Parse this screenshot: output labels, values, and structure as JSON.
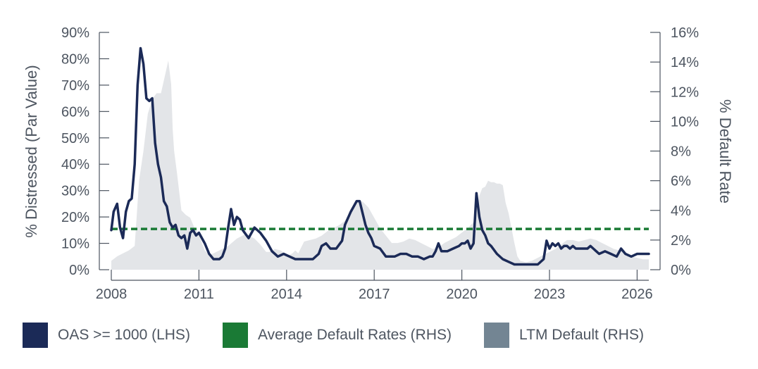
{
  "chart_data": {
    "type": "line",
    "title": "",
    "xlabel": "",
    "ylabel_left": "% Distressed (Par Value)",
    "ylabel_right": "% Default Rate",
    "x_ticks": [
      "2008",
      "2011",
      "2014",
      "2017",
      "2020",
      "2023",
      "2026"
    ],
    "x_range": [
      2008.0,
      2026.4
    ],
    "ylim_left": [
      0,
      90
    ],
    "ylim_right": [
      0,
      16
    ],
    "y_ticks_left": [
      "0%",
      "10%",
      "20%",
      "30%",
      "40%",
      "50%",
      "60%",
      "70%",
      "80%",
      "90%"
    ],
    "y_ticks_right": [
      "0%",
      "2%",
      "4%",
      "6%",
      "8%",
      "10%",
      "12%",
      "14%",
      "16%"
    ],
    "series": [
      {
        "name": "OAS >= 1000 (LHS)",
        "type": "line",
        "axis": "left",
        "color": "#1b2a57",
        "x": [
          2008.0,
          2008.08,
          2008.2,
          2008.3,
          2008.4,
          2008.5,
          2008.6,
          2008.7,
          2008.8,
          2008.9,
          2009.0,
          2009.1,
          2009.2,
          2009.3,
          2009.4,
          2009.5,
          2009.6,
          2009.7,
          2009.8,
          2009.9,
          2010.0,
          2010.1,
          2010.2,
          2010.3,
          2010.4,
          2010.5,
          2010.6,
          2010.7,
          2010.8,
          2010.9,
          2011.0,
          2011.2,
          2011.35,
          2011.5,
          2011.7,
          2011.8,
          2011.9,
          2012.0,
          2012.1,
          2012.2,
          2012.3,
          2012.4,
          2012.5,
          2012.7,
          2012.9,
          2013.1,
          2013.3,
          2013.5,
          2013.7,
          2013.9,
          2014.1,
          2014.3,
          2014.5,
          2014.7,
          2014.9,
          2015.1,
          2015.2,
          2015.35,
          2015.5,
          2015.7,
          2015.9,
          2016.0,
          2016.2,
          2016.4,
          2016.5,
          2016.7,
          2016.8,
          2016.9,
          2017.0,
          2017.2,
          2017.4,
          2017.5,
          2017.7,
          2017.9,
          2018.1,
          2018.3,
          2018.5,
          2018.7,
          2018.9,
          2019.0,
          2019.1,
          2019.2,
          2019.3,
          2019.5,
          2019.7,
          2019.9,
          2020.0,
          2020.1,
          2020.2,
          2020.3,
          2020.4,
          2020.5,
          2020.6,
          2020.7,
          2020.8,
          2020.9,
          2021.0,
          2021.2,
          2021.4,
          2021.6,
          2021.8,
          2022.0,
          2022.2,
          2022.4,
          2022.6,
          2022.8,
          2022.9,
          2023.0,
          2023.1,
          2023.2,
          2023.3,
          2023.4,
          2023.5,
          2023.6,
          2023.7,
          2023.8,
          2023.9,
          2024.0,
          2024.2,
          2024.3,
          2024.4,
          2024.5,
          2024.6,
          2024.7,
          2024.9,
          2025.1,
          2025.3,
          2025.45,
          2025.6,
          2025.8,
          2026.0,
          2026.1,
          2026.2,
          2026.3,
          2026.4
        ],
        "values": [
          15,
          22,
          25,
          16,
          12,
          22,
          26,
          27,
          40,
          70,
          84,
          78,
          65,
          64,
          65,
          48,
          40,
          35,
          26,
          24,
          18,
          16,
          17,
          13,
          12,
          13,
          8,
          14,
          15,
          13,
          14,
          10,
          6,
          4,
          4,
          5,
          8,
          16,
          23,
          17,
          20,
          19,
          15,
          12,
          16,
          14,
          11,
          7,
          5,
          6,
          5,
          4,
          4,
          4,
          4,
          6,
          9,
          10,
          8,
          8,
          11,
          17,
          22,
          26,
          26,
          17,
          14,
          12,
          9,
          8,
          5,
          5,
          5,
          6,
          6,
          5,
          5,
          4,
          5,
          5,
          7,
          10,
          7,
          7,
          8,
          9,
          10,
          10,
          11,
          8,
          10,
          29,
          20,
          15,
          13,
          10,
          9,
          6,
          4,
          3,
          2,
          2,
          2,
          2,
          2,
          4,
          11,
          8,
          10,
          9,
          10,
          8,
          9,
          9,
          8,
          9,
          8,
          8,
          8,
          8,
          9,
          8,
          7,
          6,
          7,
          6,
          5,
          8,
          6,
          5,
          6,
          6,
          6,
          6,
          6
        ]
      },
      {
        "name": "Average Default Rates (RHS)",
        "type": "dashed-line",
        "axis": "right",
        "color": "#1a7a35",
        "x": [
          2008.0,
          2026.4
        ],
        "values": [
          2.75,
          2.75
        ]
      },
      {
        "name": "LTM Default (RHS)",
        "type": "area",
        "axis": "right",
        "color": "#e3e5e8",
        "legend_color": "#738593",
        "x": [
          2008.0,
          2008.2,
          2008.4,
          2008.6,
          2008.8,
          2008.95,
          2009.1,
          2009.25,
          2009.4,
          2009.55,
          2009.7,
          2009.85,
          2009.95,
          2010.05,
          2010.1,
          2010.15,
          2010.25,
          2010.4,
          2010.55,
          2010.7,
          2010.85,
          2011.0,
          2011.1,
          2011.2,
          2011.35,
          2011.5,
          2011.7,
          2012.0,
          2012.3,
          2012.6,
          2012.9,
          2013.1,
          2013.3,
          2013.4,
          2013.6,
          2013.8,
          2014.0,
          2014.1,
          2014.2,
          2014.3,
          2014.4,
          2014.6,
          2014.8,
          2015.0,
          2015.2,
          2015.4,
          2015.6,
          2015.8,
          2016.0,
          2016.2,
          2016.4,
          2016.6,
          2016.8,
          2017.0,
          2017.2,
          2017.4,
          2017.6,
          2017.8,
          2018.0,
          2018.2,
          2018.4,
          2018.6,
          2018.8,
          2019.0,
          2019.2,
          2019.4,
          2019.6,
          2019.8,
          2020.0,
          2020.2,
          2020.4,
          2020.5,
          2020.6,
          2020.7,
          2020.8,
          2020.9,
          2021.0,
          2021.1,
          2021.2,
          2021.3,
          2021.4,
          2021.5,
          2021.6,
          2021.7,
          2021.8,
          2021.9,
          2022.0,
          2022.2,
          2022.4,
          2022.6,
          2022.8,
          2023.0,
          2023.2,
          2023.4,
          2023.6,
          2023.8,
          2024.0,
          2024.2,
          2024.4,
          2024.6,
          2024.8,
          2025.0,
          2025.2,
          2025.4,
          2025.6,
          2025.8,
          2026.0,
          2026.2,
          2026.4
        ],
        "values": [
          0.6,
          0.9,
          1.1,
          1.3,
          1.6,
          6.0,
          8.0,
          10.5,
          11.5,
          11.9,
          11.9,
          13.2,
          14.1,
          12.5,
          9.5,
          8.0,
          6.5,
          4.0,
          3.7,
          3.5,
          2.8,
          2.4,
          1.8,
          1.3,
          1.0,
          1.1,
          1.3,
          1.6,
          2.1,
          2.4,
          2.1,
          1.7,
          1.2,
          1.2,
          1.4,
          1.3,
          1.0,
          1.0,
          1.1,
          1.3,
          1.1,
          1.9,
          2.0,
          2.1,
          2.3,
          2.6,
          2.8,
          3.0,
          3.3,
          4.0,
          4.5,
          4.6,
          4.2,
          3.5,
          2.8,
          2.3,
          1.8,
          1.8,
          1.9,
          2.1,
          2.0,
          1.8,
          1.6,
          1.4,
          1.5,
          1.8,
          2.0,
          2.2,
          2.5,
          2.8,
          3.2,
          4.0,
          5.0,
          5.5,
          5.6,
          6.0,
          5.9,
          5.9,
          5.8,
          5.8,
          5.7,
          4.5,
          3.8,
          2.8,
          1.8,
          0.9,
          0.6,
          0.5,
          0.6,
          0.8,
          1.0,
          1.2,
          1.4,
          1.7,
          2.0,
          2.0,
          1.9,
          2.0,
          2.1,
          2.0,
          1.8,
          1.6,
          1.4,
          1.3,
          1.1,
          0.9,
          0.8,
          0.7,
          0.7
        ]
      }
    ]
  },
  "legend": {
    "items": [
      {
        "label": "OAS >= 1000 (LHS)",
        "color": "#1b2a57"
      },
      {
        "label": "Average Default Rates (RHS)",
        "color": "#1a7a35"
      },
      {
        "label": "LTM Default (RHS)",
        "color": "#738593"
      }
    ]
  }
}
